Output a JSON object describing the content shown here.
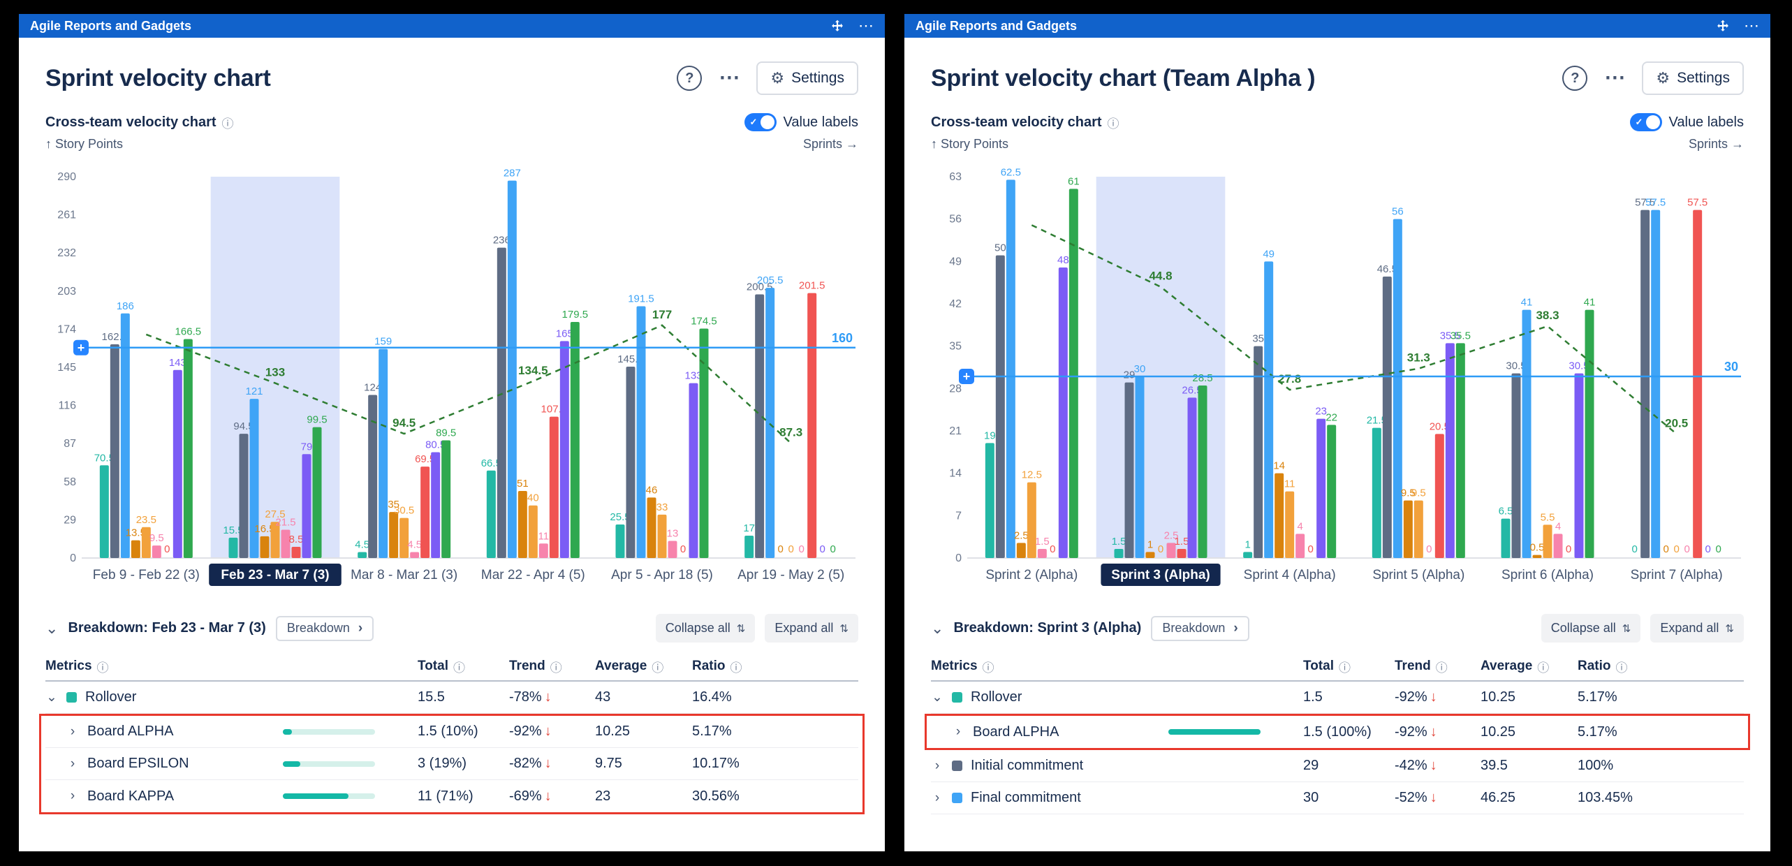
{
  "panels": [
    {
      "gadget_title": "Agile Reports and Gadgets",
      "title": "Sprint velocity chart",
      "actions": {
        "help": "?",
        "settings_label": "Settings"
      },
      "chart_header": {
        "label": "Cross-team velocity chart",
        "toggle_label": "Value labels",
        "toggle_on": true,
        "y_caption": "↑ Story Points",
        "x_caption": "Sprints →"
      },
      "breakdown": {
        "title": "Breakdown: Feb 23 - Mar 7 (3)",
        "chip_label": "Breakdown",
        "collapse_label": "Collapse all",
        "expand_label": "Expand all"
      },
      "table": {
        "headers": [
          "Metrics",
          "Total",
          "Trend",
          "Average",
          "Ratio"
        ],
        "rows": [
          {
            "name": "Rollover",
            "indent": 0,
            "expanded": true,
            "chip_color": "#23B8A5",
            "total": "15.5",
            "trend": "-78%",
            "trend_dir": "down",
            "average": "43",
            "ratio": "16.4%",
            "highlighted": false
          },
          {
            "name": "Board ALPHA",
            "indent": 1,
            "expanded": false,
            "bar_percent": 10,
            "total": "1.5 (10%)",
            "trend": "-92%",
            "trend_dir": "down",
            "average": "10.25",
            "ratio": "5.17%",
            "highlighted": true
          },
          {
            "name": "Board EPSILON",
            "indent": 1,
            "expanded": false,
            "bar_percent": 19,
            "total": "3 (19%)",
            "trend": "-82%",
            "trend_dir": "down",
            "average": "9.75",
            "ratio": "10.17%",
            "highlighted": true
          },
          {
            "name": "Board KAPPA",
            "indent": 1,
            "expanded": false,
            "bar_percent": 71,
            "total": "11 (71%)",
            "trend": "-69%",
            "trend_dir": "down",
            "average": "23",
            "ratio": "30.56%",
            "highlighted": true
          }
        ]
      },
      "chart_data": {
        "type": "bar",
        "title": "Sprint velocity chart",
        "categories": [
          "Feb 9 - Feb 22 (3)",
          "Feb 23 - Mar 7 (3)",
          "Mar 8 - Mar 21 (3)",
          "Mar 22 - Apr 4 (5)",
          "Apr 5 - Apr 18 (5)",
          "Apr 19 - May 2 (5)"
        ],
        "selected_category_index": 1,
        "ylabel": "Story Points",
        "xlabel": "Sprints",
        "ylim": [
          0,
          290
        ],
        "ytick_step": 29,
        "grid": false,
        "legend_position": "none",
        "series": [
          {
            "name": "Rollover",
            "color": "#23B8A5",
            "values": [
              70.5,
              15.5,
              4.5,
              66.5,
              25.5,
              17
            ]
          },
          {
            "name": "Initial commitment",
            "color": "#5E6C84",
            "values": [
              162.5,
              94.5,
              124,
              236,
              145.5,
              200.5
            ]
          },
          {
            "name": "Final commitment",
            "color": "#3FA4F6",
            "values": [
              186,
              121,
              159,
              287,
              191.5,
              205.5
            ]
          },
          {
            "name": "orange-series",
            "color": "#D9830D",
            "values": [
              13.5,
              16.5,
              35,
              51,
              46,
              0
            ]
          },
          {
            "name": "amber-series",
            "color": "#F2A13B",
            "values": [
              23.5,
              27.5,
              30.5,
              40,
              33,
              0
            ]
          },
          {
            "name": "pink-series",
            "color": "#F783AC",
            "values": [
              9.5,
              21.5,
              4.5,
              11,
              13,
              0
            ]
          },
          {
            "name": "red-series",
            "color": "#F05452",
            "values": [
              0,
              8.5,
              69.5,
              107.5,
              0,
              201.5
            ]
          },
          {
            "name": "purple-series",
            "color": "#7B5CF5",
            "values": [
              143,
              79,
              80.5,
              165,
              133,
              0
            ]
          },
          {
            "name": "green-series",
            "color": "#2FA84F",
            "values": [
              166.5,
              99.5,
              89.5,
              179.5,
              174.5,
              0
            ]
          }
        ],
        "trend_line": {
          "color": "#2E7D32",
          "style": "dashed",
          "values": [
            170,
            133,
            94.5,
            134.5,
            177,
            87.3
          ],
          "labels": [
            "",
            "133",
            "94.5",
            "134.5",
            "177",
            "87.3"
          ]
        },
        "target_line": {
          "value": 160,
          "label": "160",
          "color": "#2E9BF6"
        }
      }
    },
    {
      "gadget_title": "Agile Reports and Gadgets",
      "title": "Sprint velocity chart (Team Alpha )",
      "actions": {
        "help": "?",
        "settings_label": "Settings"
      },
      "chart_header": {
        "label": "Cross-team velocity chart",
        "toggle_label": "Value labels",
        "toggle_on": true,
        "y_caption": "↑ Story Points",
        "x_caption": "Sprints →"
      },
      "breakdown": {
        "title": "Breakdown: Sprint 3 (Alpha)",
        "chip_label": "Breakdown",
        "collapse_label": "Collapse all",
        "expand_label": "Expand all"
      },
      "table": {
        "headers": [
          "Metrics",
          "Total",
          "Trend",
          "Average",
          "Ratio"
        ],
        "rows": [
          {
            "name": "Rollover",
            "indent": 0,
            "expanded": true,
            "chip_color": "#23B8A5",
            "total": "1.5",
            "trend": "-92%",
            "trend_dir": "down",
            "average": "10.25",
            "ratio": "5.17%",
            "highlighted": false
          },
          {
            "name": "Board ALPHA",
            "indent": 1,
            "expanded": false,
            "bar_percent": 100,
            "total": "1.5 (100%)",
            "trend": "-92%",
            "trend_dir": "down",
            "average": "10.25",
            "ratio": "5.17%",
            "highlighted": true
          },
          {
            "name": "Initial commitment",
            "indent": 0,
            "expanded": false,
            "chip_color": "#5E6C84",
            "total": "29",
            "trend": "-42%",
            "trend_dir": "down",
            "average": "39.5",
            "ratio": "100%",
            "highlighted": false
          },
          {
            "name": "Final commitment",
            "indent": 0,
            "expanded": false,
            "chip_color": "#3FA4F6",
            "total": "30",
            "trend": "-52%",
            "trend_dir": "down",
            "average": "46.25",
            "ratio": "103.45%",
            "highlighted": false
          }
        ]
      },
      "chart_data": {
        "type": "bar",
        "title": "Sprint velocity chart (Team Alpha )",
        "categories": [
          "Sprint 2 (Alpha)",
          "Sprint 3 (Alpha)",
          "Sprint 4 (Alpha)",
          "Sprint 5 (Alpha)",
          "Sprint 6 (Alpha)",
          "Sprint 7 (Alpha)"
        ],
        "selected_category_index": 1,
        "ylabel": "Story Points",
        "xlabel": "Sprints",
        "ylim": [
          0,
          63
        ],
        "ytick_step": 7,
        "grid": false,
        "legend_position": "none",
        "series": [
          {
            "name": "Rollover",
            "color": "#23B8A5",
            "values": [
              19,
              1.5,
              1,
              21.5,
              6.5,
              0
            ]
          },
          {
            "name": "Initial commitment",
            "color": "#5E6C84",
            "values": [
              50,
              29,
              35,
              46.5,
              30.5,
              57.5
            ]
          },
          {
            "name": "Final commitment",
            "color": "#3FA4F6",
            "values": [
              62.5,
              30,
              49,
              56,
              41,
              57.5
            ]
          },
          {
            "name": "orange-series",
            "color": "#D9830D",
            "values": [
              2.5,
              1,
              14,
              9.5,
              0.5,
              0
            ]
          },
          {
            "name": "amber-series",
            "color": "#F2A13B",
            "values": [
              12.5,
              0,
              11,
              9.5,
              5.5,
              0
            ]
          },
          {
            "name": "pink-series",
            "color": "#F783AC",
            "values": [
              1.5,
              2.5,
              4,
              0,
              4,
              0
            ]
          },
          {
            "name": "red-series",
            "color": "#F05452",
            "values": [
              0,
              1.5,
              0,
              20.5,
              0,
              57.5
            ]
          },
          {
            "name": "purple-series",
            "color": "#7B5CF5",
            "values": [
              48,
              26.5,
              23,
              35.5,
              30.5,
              0
            ]
          },
          {
            "name": "green-series",
            "color": "#2FA84F",
            "values": [
              61,
              28.5,
              22,
              35.5,
              41,
              0
            ]
          }
        ],
        "trend_line": {
          "color": "#2E7D32",
          "style": "dashed",
          "values": [
            55,
            44.8,
            27.8,
            31.3,
            38.3,
            20.5
          ],
          "labels": [
            "",
            "44.8",
            "27.8",
            "31.3",
            "38.3",
            "20.5"
          ]
        },
        "target_line": {
          "value": 30,
          "label": "30",
          "color": "#2E9BF6"
        }
      }
    }
  ]
}
